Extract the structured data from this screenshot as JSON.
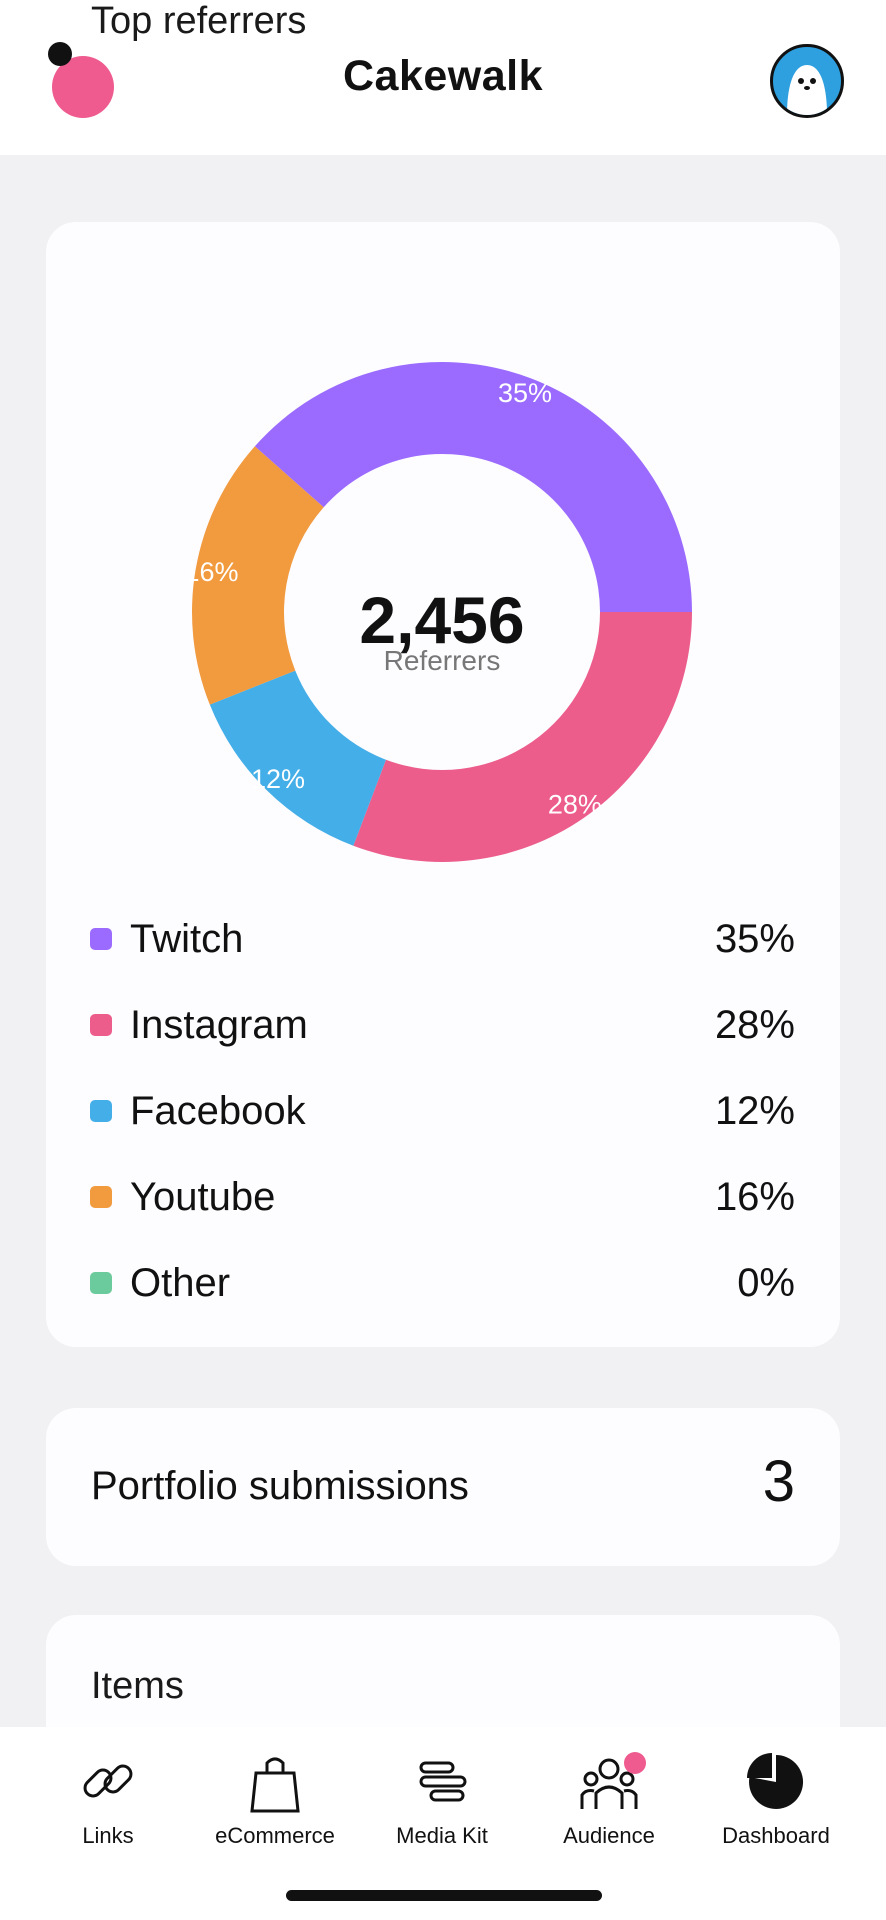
{
  "header": {
    "title": "Cakewalk"
  },
  "colors": {
    "twitch": "#9b6bff",
    "instagram": "#ec5d8c",
    "facebook": "#44aee8",
    "youtube": "#f19a3e",
    "other": "#6ccb9c",
    "accent": "#ef5b8e"
  },
  "referrers": {
    "title": "Top referrers",
    "total": "2,456",
    "total_label": "Referrers",
    "items": [
      {
        "name": "Twitch",
        "pct": "35%"
      },
      {
        "name": "Instagram",
        "pct": "28%"
      },
      {
        "name": "Facebook",
        "pct": "12%"
      },
      {
        "name": "Youtube",
        "pct": "16%"
      },
      {
        "name": "Other",
        "pct": "0%"
      }
    ]
  },
  "chart_data": {
    "type": "pie",
    "categories": [
      "Twitch",
      "Instagram",
      "Facebook",
      "Youtube",
      "Other"
    ],
    "values": [
      35,
      28,
      12,
      16,
      0
    ],
    "colors": [
      "#9b6bff",
      "#ec5d8c",
      "#44aee8",
      "#f19a3e",
      "#6ccb9c"
    ],
    "legend": "bottom"
  },
  "portfolio": {
    "label": "Portfolio submissions",
    "count": "3"
  },
  "items": {
    "title": "Items"
  },
  "nav": {
    "items": [
      {
        "label": "Links",
        "icon": "link-icon"
      },
      {
        "label": "eCommerce",
        "icon": "shopping-bag-icon"
      },
      {
        "label": "Media Kit",
        "icon": "media-kit-icon"
      },
      {
        "label": "Audience",
        "icon": "audience-icon"
      },
      {
        "label": "Dashboard",
        "icon": "pie-chart-icon"
      }
    ]
  }
}
